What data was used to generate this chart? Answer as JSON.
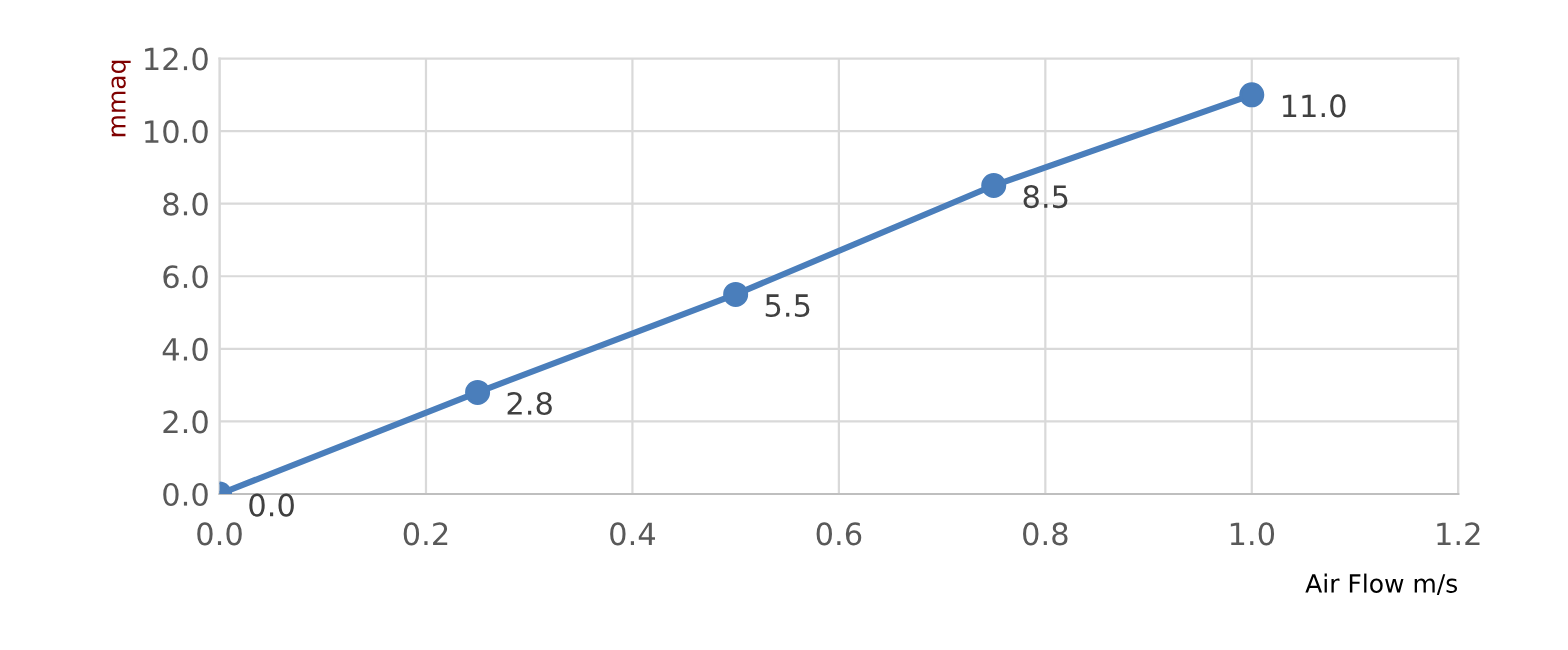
{
  "chart_data": {
    "type": "line",
    "xlabel": "Air Flow m/s",
    "ylabel": "mmaq",
    "x": [
      0.0,
      0.25,
      0.5,
      0.75,
      1.0
    ],
    "series": [
      {
        "color": "#4a7ebb",
        "values": [
          0.0,
          2.8,
          5.5,
          8.5,
          11.0
        ],
        "value_labels": [
          "0.0",
          "2.8",
          "5.5",
          "8.5",
          "11.0"
        ]
      }
    ],
    "xlim": [
      0,
      1.2
    ],
    "xticks": [
      {
        "value": 0,
        "label": "0.0"
      },
      0.2,
      0.4,
      0.6,
      0.8,
      {
        "value": 1.0,
        "label": "1.0"
      },
      1.2
    ],
    "ylim": [
      0,
      12
    ],
    "yticks": [
      {
        "value": 0,
        "label": "0.0"
      },
      {
        "value": 2,
        "label": "2.0"
      },
      {
        "value": 4,
        "label": "4.0"
      },
      {
        "value": 6,
        "label": "6.0"
      },
      {
        "value": 8,
        "label": "8.0"
      },
      {
        "value": 10,
        "label": "10.0"
      },
      {
        "value": 12,
        "label": "12.0"
      }
    ],
    "grid": true,
    "marker": "circle",
    "line_style": "solid"
  }
}
